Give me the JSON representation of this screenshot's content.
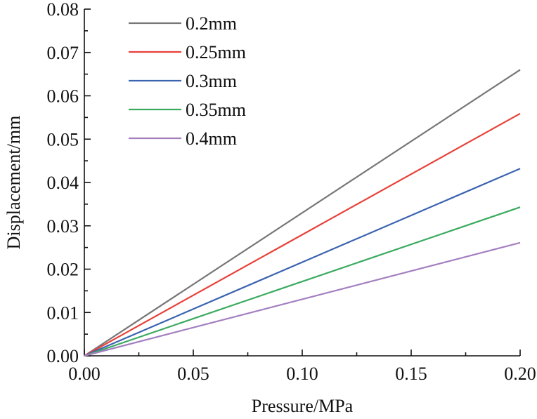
{
  "chart_data": {
    "type": "line",
    "title": "",
    "xlabel": "Pressure/MPa",
    "ylabel": "Displacement/mm",
    "xlim": [
      0,
      0.2
    ],
    "ylim": [
      0,
      0.08
    ],
    "xticks": [
      "0.00",
      "0.05",
      "0.10",
      "0.15",
      "0.20"
    ],
    "yticks": [
      "0.00",
      "0.01",
      "0.02",
      "0.03",
      "0.04",
      "0.05",
      "0.06",
      "0.07",
      "0.08"
    ],
    "grid": false,
    "legend_position": "top-left",
    "series": [
      {
        "name": "0.2mm",
        "color": "#777777",
        "x": [
          0,
          0.2
        ],
        "y": [
          0,
          0.066
        ]
      },
      {
        "name": "0.25mm",
        "color": "#e8413a",
        "x": [
          0,
          0.2
        ],
        "y": [
          0,
          0.0559
        ]
      },
      {
        "name": "0.3mm",
        "color": "#3b63b0",
        "x": [
          0,
          0.2
        ],
        "y": [
          0,
          0.0432
        ]
      },
      {
        "name": "0.35mm",
        "color": "#3aaa5f",
        "x": [
          0,
          0.2
        ],
        "y": [
          0,
          0.0343
        ]
      },
      {
        "name": "0.4mm",
        "color": "#a37fc0",
        "x": [
          0,
          0.2
        ],
        "y": [
          0,
          0.0261
        ]
      }
    ]
  }
}
